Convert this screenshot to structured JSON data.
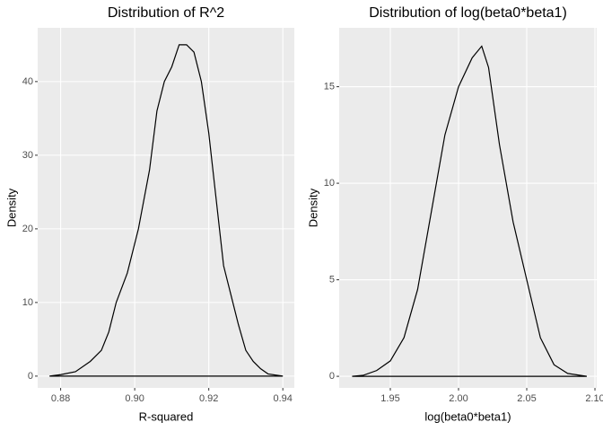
{
  "chart_data": [
    {
      "type": "line",
      "title": "Distribution of R^2",
      "x_label": "R-squared",
      "y_label": "Density",
      "x": [
        0.877,
        0.88,
        0.884,
        0.888,
        0.891,
        0.893,
        0.895,
        0.898,
        0.901,
        0.904,
        0.906,
        0.908,
        0.91,
        0.912,
        0.914,
        0.916,
        0.918,
        0.92,
        0.922,
        0.924,
        0.926,
        0.928,
        0.93,
        0.932,
        0.934,
        0.936,
        0.94
      ],
      "series": [
        {
          "color": "#000000",
          "values": [
            0,
            0.2,
            0.6,
            2,
            3.5,
            6,
            10,
            14,
            20,
            28,
            36,
            40,
            42,
            45,
            45,
            44,
            40,
            33,
            24,
            15,
            11,
            7,
            3.5,
            2,
            1,
            0.3,
            0
          ]
        }
      ],
      "xlim": [
        0.8738,
        0.9431
      ],
      "ylim": [
        -1.6,
        47.3
      ],
      "xticks": [
        0.88,
        {
          "value": 0.9,
          "label": "0.90"
        },
        0.92,
        0.94
      ],
      "yticks": [
        0,
        10,
        20,
        30,
        40
      ],
      "grid": true
    },
    {
      "type": "line",
      "title": "Distribution of log(beta0*beta1)",
      "x_label": "log(beta0*beta1)",
      "y_label": "Density",
      "x": [
        1.922,
        1.93,
        1.94,
        1.95,
        1.96,
        1.97,
        1.98,
        1.99,
        2.0,
        2.01,
        2.017,
        2.022,
        2.03,
        2.04,
        2.05,
        2.06,
        2.07,
        2.08,
        2.094
      ],
      "series": [
        {
          "color": "#000000",
          "values": [
            0,
            0.05,
            0.3,
            0.8,
            2,
            4.5,
            8.5,
            12.5,
            15,
            16.5,
            17.1,
            16,
            12,
            8,
            5,
            2,
            0.6,
            0.15,
            0
          ]
        }
      ],
      "xlim": [
        1.9125,
        2.1013
      ],
      "ylim": [
        -0.6,
        18.05
      ],
      "xticks": [
        1.95,
        {
          "value": 2.0,
          "label": "2.00"
        },
        2.05,
        {
          "value": 2.1,
          "label": "2.10"
        }
      ],
      "yticks": [
        0,
        5,
        10,
        15
      ],
      "grid": true
    }
  ]
}
